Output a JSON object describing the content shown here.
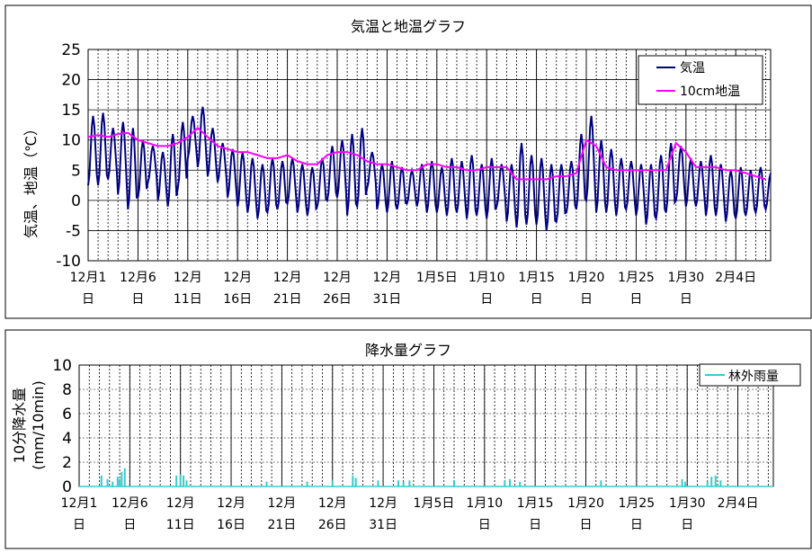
{
  "chart_data": [
    {
      "type": "line",
      "title": "気温と地温グラフ",
      "ylabel": "気温、地温（℃）",
      "ylim": [
        -10,
        25
      ],
      "yticks": [
        -10,
        -5,
        0,
        5,
        10,
        15,
        20,
        25
      ],
      "xlim": [
        0,
        68.5
      ],
      "x_ticks": [
        {
          "day": 0,
          "l1": "12月1",
          "l2": "日"
        },
        {
          "day": 5,
          "l1": "12月6",
          "l2": "日"
        },
        {
          "day": 10,
          "l1": "12月",
          "l2": "11日"
        },
        {
          "day": 15,
          "l1": "12月",
          "l2": "16日"
        },
        {
          "day": 20,
          "l1": "12月",
          "l2": "21日"
        },
        {
          "day": 25,
          "l1": "12月",
          "l2": "26日"
        },
        {
          "day": 30,
          "l1": "12月",
          "l2": "31日"
        },
        {
          "day": 35,
          "l1": "1月5日",
          "l2": ""
        },
        {
          "day": 40,
          "l1": "1月10",
          "l2": "日"
        },
        {
          "day": 45,
          "l1": "1月15",
          "l2": "日"
        },
        {
          "day": 50,
          "l1": "1月20",
          "l2": "日"
        },
        {
          "day": 55,
          "l1": "1月25",
          "l2": "日"
        },
        {
          "day": 60,
          "l1": "1月30",
          "l2": "日"
        },
        {
          "day": 65,
          "l1": "2月4日",
          "l2": ""
        }
      ],
      "legend_position": "top-right",
      "series": [
        {
          "name": "気温",
          "color": "#000080",
          "daily_min": [
            2.5,
            2.5,
            3.5,
            1.0,
            -1.5,
            0.5,
            3.0,
            0.0,
            -1.0,
            2.0,
            7.0,
            5.5,
            4.0,
            3.0,
            0.5,
            -1.0,
            -2.0,
            -3.0,
            -2.0,
            -1.5,
            -0.5,
            -2.0,
            -2.5,
            -1.0,
            0.0,
            0.5,
            -2.5,
            -1.0,
            2.0,
            -1.5,
            -2.0,
            -1.5,
            -0.5,
            -1.0,
            -2.0,
            -2.0,
            -2.5,
            -2.0,
            -3.0,
            -2.5,
            -3.0,
            -1.0,
            -3.5,
            -4.5,
            -4.0,
            -4.0,
            -5.0,
            -3.5,
            -2.0,
            -1.5,
            0.0,
            -2.0,
            -2.0,
            -2.5,
            -1.5,
            -2.5,
            -4.0,
            -3.0,
            -2.0,
            0.0,
            -1.0,
            -1.0,
            -2.5,
            -2.5,
            -3.5,
            -3.0,
            -2.5,
            -2.0,
            -1.5
          ],
          "daily_max": [
            14.0,
            14.5,
            12.0,
            13.0,
            12.0,
            10.0,
            9.0,
            8.0,
            11.0,
            13.0,
            14.0,
            15.5,
            12.0,
            9.5,
            8.5,
            8.0,
            7.0,
            6.0,
            7.0,
            6.5,
            7.0,
            6.0,
            5.5,
            7.0,
            9.0,
            10.0,
            11.0,
            12.0,
            8.0,
            6.0,
            6.5,
            5.5,
            5.0,
            6.0,
            6.5,
            5.5,
            7.0,
            6.5,
            7.5,
            6.0,
            7.0,
            6.0,
            6.0,
            9.5,
            7.5,
            7.0,
            6.0,
            6.0,
            6.5,
            11.0,
            14.0,
            10.0,
            8.5,
            7.0,
            6.5,
            6.0,
            6.0,
            7.5,
            9.5,
            9.0,
            7.0,
            6.5,
            7.5,
            6.0,
            5.0,
            5.5,
            5.0,
            5.5,
            4.5
          ]
        },
        {
          "name": "10cm地温",
          "color": "#ff00ff",
          "x": [
            0,
            1,
            2,
            3,
            4,
            5,
            6,
            7,
            8,
            9,
            10,
            11,
            12,
            13,
            14,
            15,
            16,
            17,
            18,
            19,
            20,
            21,
            22,
            23,
            24,
            25,
            26,
            27,
            28,
            29,
            30,
            31,
            32,
            33,
            34,
            35,
            36,
            37,
            38,
            39,
            40,
            41,
            42,
            43,
            44,
            45,
            46,
            47,
            48,
            49,
            50,
            51,
            52,
            53,
            54,
            55,
            56,
            57,
            58,
            59,
            60,
            61,
            62,
            63,
            64,
            65,
            66,
            67,
            68
          ],
          "values": [
            10.5,
            10.8,
            10.5,
            11.0,
            11.2,
            10.0,
            9.5,
            9.0,
            9.0,
            9.5,
            10.5,
            12.0,
            10.5,
            9.0,
            8.5,
            8.0,
            8.0,
            7.5,
            7.0,
            7.0,
            7.5,
            6.5,
            6.0,
            6.0,
            7.5,
            8.0,
            8.0,
            7.5,
            6.5,
            6.0,
            6.0,
            5.5,
            5.0,
            5.0,
            6.0,
            6.0,
            5.5,
            5.5,
            5.0,
            5.0,
            5.5,
            5.5,
            5.5,
            3.5,
            3.5,
            3.5,
            3.5,
            4.0,
            4.0,
            4.5,
            10.0,
            9.0,
            5.5,
            5.0,
            5.0,
            5.0,
            5.0,
            5.0,
            5.0,
            9.5,
            8.0,
            5.5,
            5.5,
            5.5,
            5.0,
            5.0,
            4.5,
            4.0,
            3.5
          ]
        }
      ]
    },
    {
      "type": "bar",
      "title": "降水量グラフ",
      "ylabel_lines": [
        "10分降水量",
        "(mm/10min)"
      ],
      "ylim": [
        0,
        10
      ],
      "yticks": [
        0,
        2,
        4,
        6,
        8,
        10
      ],
      "xlim": [
        0,
        68.5
      ],
      "x_ticks": [
        {
          "day": 0,
          "l1": "12月1",
          "l2": "日"
        },
        {
          "day": 5,
          "l1": "12月6",
          "l2": "日"
        },
        {
          "day": 10,
          "l1": "12月",
          "l2": "11日"
        },
        {
          "day": 15,
          "l1": "12月",
          "l2": "16日"
        },
        {
          "day": 20,
          "l1": "12月",
          "l2": "21日"
        },
        {
          "day": 25,
          "l1": "12月",
          "l2": "26日"
        },
        {
          "day": 30,
          "l1": "12月",
          "l2": "31日"
        },
        {
          "day": 35,
          "l1": "1月5日",
          "l2": ""
        },
        {
          "day": 40,
          "l1": "1月10",
          "l2": "日"
        },
        {
          "day": 45,
          "l1": "1月15",
          "l2": "日"
        },
        {
          "day": 50,
          "l1": "1月20",
          "l2": "日"
        },
        {
          "day": 55,
          "l1": "1月25",
          "l2": "日"
        },
        {
          "day": 60,
          "l1": "1月30",
          "l2": "日"
        },
        {
          "day": 65,
          "l1": "2月4日",
          "l2": ""
        }
      ],
      "legend_position": "top-right",
      "series": [
        {
          "name": "林外雨量",
          "color": "#33cccc",
          "x": [
            2.2,
            2.8,
            3.3,
            3.8,
            4.0,
            4.2,
            4.5,
            9.6,
            10.0,
            10.3,
            10.6,
            18.5,
            22.5,
            25.0,
            27.0,
            27.3,
            29.5,
            31.5,
            32.0,
            32.6,
            37.0,
            42.0,
            42.5,
            43.5,
            51.5,
            59.5,
            59.8,
            62.0,
            62.4,
            62.8,
            63.3
          ],
          "values": [
            0.9,
            0.6,
            0.4,
            0.8,
            0.6,
            1.2,
            1.5,
            0.9,
            1.0,
            0.9,
            0.5,
            0.4,
            0.4,
            0.5,
            0.9,
            0.7,
            0.5,
            0.5,
            0.4,
            0.5,
            0.5,
            0.5,
            0.6,
            0.4,
            0.5,
            0.6,
            0.4,
            0.4,
            0.8,
            0.9,
            0.5
          ]
        }
      ]
    }
  ]
}
